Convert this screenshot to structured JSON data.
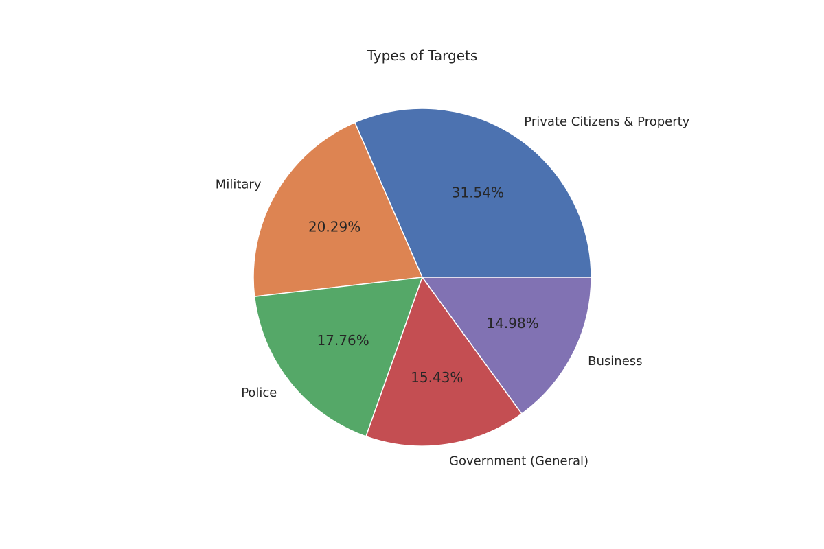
{
  "chart_data": {
    "type": "pie",
    "title": "Types of Targets",
    "start_angle_deg": 0,
    "direction": "counterclockwise",
    "slices": [
      {
        "label": "Private Citizens & Property",
        "value": 31.54,
        "pct_label": "31.54%",
        "color": "#4c72b0"
      },
      {
        "label": "Military",
        "value": 20.29,
        "pct_label": "20.29%",
        "color": "#dd8452"
      },
      {
        "label": "Police",
        "value": 17.76,
        "pct_label": "17.76%",
        "color": "#55a868"
      },
      {
        "label": "Government (General)",
        "value": 15.43,
        "pct_label": "15.43%",
        "color": "#c44e52"
      },
      {
        "label": "Business",
        "value": 14.98,
        "pct_label": "14.98%",
        "color": "#8172b3"
      }
    ]
  }
}
